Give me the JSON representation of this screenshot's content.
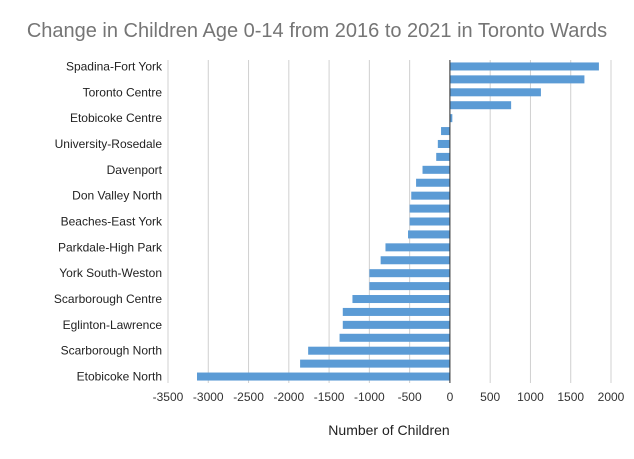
{
  "chart_data": {
    "type": "bar",
    "orientation": "horizontal",
    "title": "Change in Children Age 0-14 from 2016 to 2021 in Toronto Wards",
    "xlabel": "Number of Children",
    "ylabel": "",
    "xlim": [
      -3500,
      2000
    ],
    "xticks": [
      -3500,
      -3000,
      -2500,
      -2000,
      -1500,
      -1000,
      -500,
      0,
      500,
      1000,
      1500,
      2000
    ],
    "grid": true,
    "legend": "none",
    "bar_color": "#5b9bd5",
    "categories": [
      "Spadina-Fort York",
      "",
      "Toronto Centre",
      "",
      "Etobicoke Centre",
      "",
      "University-Rosedale",
      "",
      "Davenport",
      "",
      "Don Valley North",
      "",
      "Beaches-East York",
      "",
      "Parkdale-High Park",
      "",
      "York South-Weston",
      "",
      "Scarborough Centre",
      "",
      "Eglinton-Lawrence",
      "",
      "Scarborough North",
      "",
      "Etobicoke North"
    ],
    "values": [
      1850,
      1670,
      1130,
      760,
      30,
      -110,
      -150,
      -170,
      -340,
      -420,
      -480,
      -500,
      -500,
      -520,
      -800,
      -860,
      -1000,
      -1000,
      -1210,
      -1330,
      -1330,
      -1370,
      -1760,
      -1860,
      -3140
    ]
  }
}
